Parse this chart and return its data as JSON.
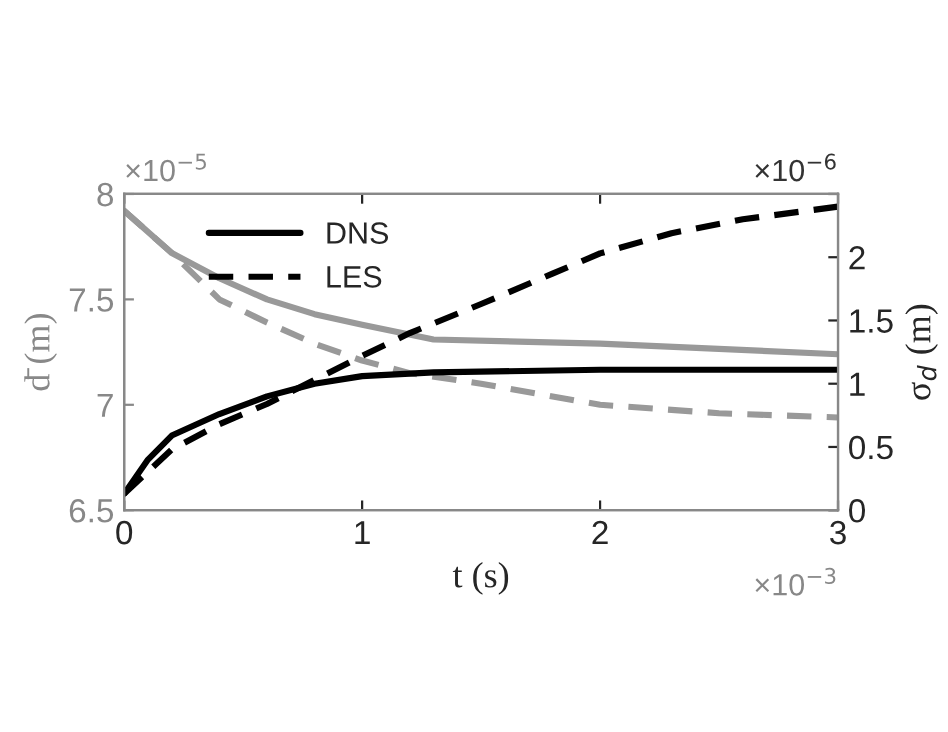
{
  "chart_data": {
    "type": "line",
    "xlabel": "t (s)",
    "ylabel": "d̄ (m)",
    "y2label": "σ$_{d}$ (m)",
    "xlim": [
      0,
      3
    ],
    "xticks": [
      0,
      1,
      2,
      3
    ],
    "ylim": [
      6.5,
      8
    ],
    "yticks": [
      6.5,
      7,
      7.5,
      8
    ],
    "y2lim": [
      0,
      2.5
    ],
    "y2ticks": [
      0,
      0.5,
      1,
      1.5,
      2,
      {
        "value": 2.5,
        "label": null
      }
    ],
    "grid": false,
    "legend": "top left",
    "marker": "none",
    "annotations": [
      "×10$^{−5}$",
      "×10$^{−6}$",
      "×10$^{−3}$"
    ],
    "series": [
      {
        "color": "#999999",
        "line_style": "solid",
        "x": [
          0,
          0.2,
          0.4,
          0.6,
          0.8,
          1.0,
          1.3,
          2.0,
          3.0
        ],
        "values": [
          7.92,
          7.72,
          7.6,
          7.5,
          7.43,
          7.38,
          7.31,
          7.29,
          7.24
        ]
      },
      {
        "color": "#999999",
        "line_style": "dashed",
        "x": [
          0,
          0.2,
          0.4,
          0.6,
          0.8,
          1.0,
          1.2,
          1.5,
          2.0,
          2.5,
          3.0
        ],
        "values": [
          7.92,
          7.72,
          7.5,
          7.39,
          7.29,
          7.21,
          7.15,
          7.1,
          7.0,
          6.96,
          6.94
        ]
      },
      {
        "name": "DNS",
        "color": "#000000",
        "line_style": "solid",
        "axis": "y2",
        "x": [
          0,
          0.1,
          0.2,
          0.4,
          0.6,
          0.8,
          1.0,
          1.3,
          2.0,
          3.0
        ],
        "values": [
          0.13,
          0.4,
          0.59,
          0.76,
          0.9,
          1.0,
          1.06,
          1.09,
          1.11,
          1.11
        ]
      },
      {
        "name": "LES",
        "color": "#000000",
        "line_style": "dashed",
        "axis": "y2",
        "x": [
          0,
          0.2,
          0.4,
          0.6,
          0.8,
          1.0,
          1.2,
          1.5,
          1.8,
          2.0,
          2.3,
          2.6,
          3.0
        ],
        "values": [
          0.13,
          0.48,
          0.68,
          0.84,
          1.03,
          1.22,
          1.4,
          1.63,
          1.87,
          2.03,
          2.19,
          2.3,
          2.4
        ]
      }
    ]
  }
}
